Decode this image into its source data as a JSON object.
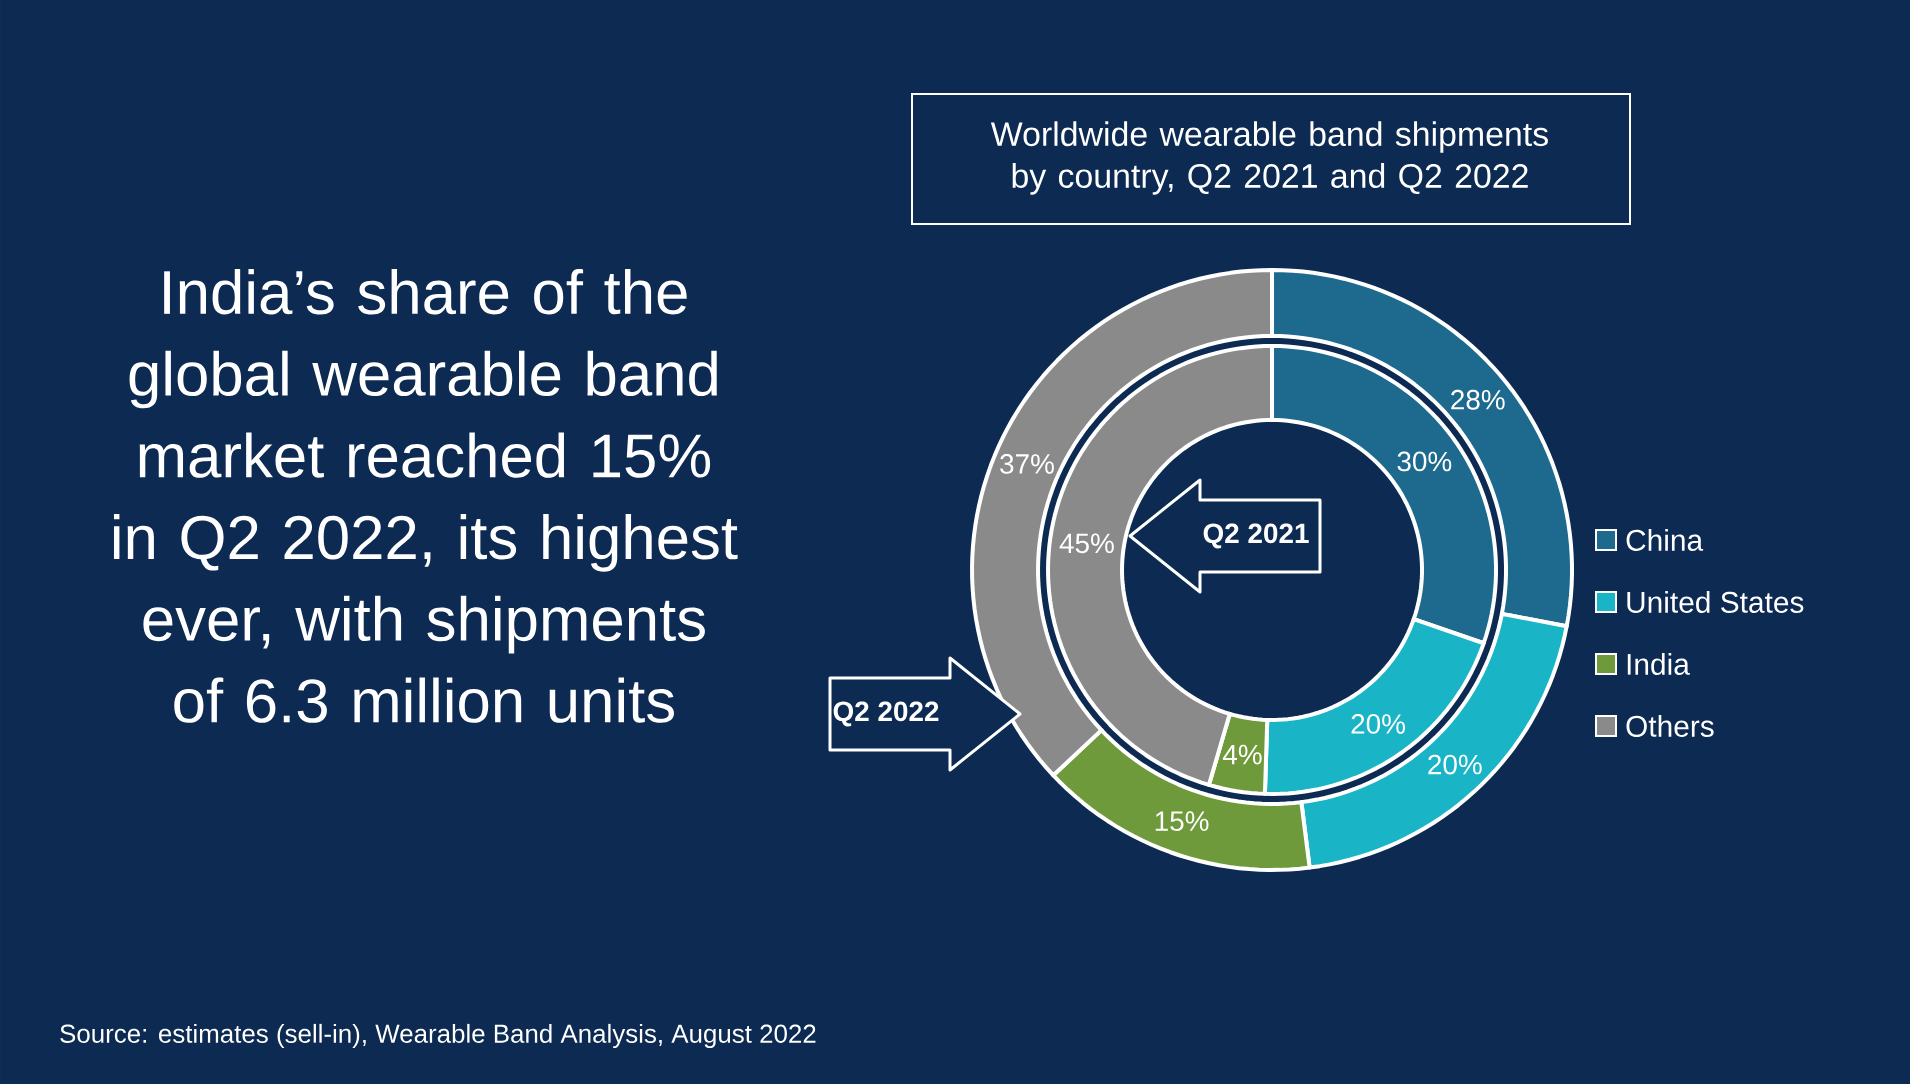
{
  "chart_data": {
    "type": "donut",
    "title": "Worldwide wearable band shipments by country, Q2 2021 and Q2 2022",
    "categories": [
      "China",
      "United States",
      "India",
      "Others"
    ],
    "colors": [
      "#1d6a8e",
      "#19b4c6",
      "#6f9a3b",
      "#8a8a8a"
    ],
    "series": [
      {
        "name": "Q2 2021",
        "values": [
          30,
          20,
          4,
          45
        ],
        "value_labels": [
          "30%",
          "20%",
          "4%",
          "45%"
        ]
      },
      {
        "name": "Q2 2022",
        "values": [
          28,
          20,
          15,
          37
        ],
        "value_labels": [
          "28%",
          "20%",
          "15%",
          "37%"
        ]
      }
    ],
    "legend": "right",
    "annotations": [
      "India’s share of the global wearable band market reached 15% in Q2 2022, its highest ever, with shipments of 6.3 million units",
      "Source: estimates (sell-in), Wearable Band Analysis, August 2022"
    ]
  }
}
